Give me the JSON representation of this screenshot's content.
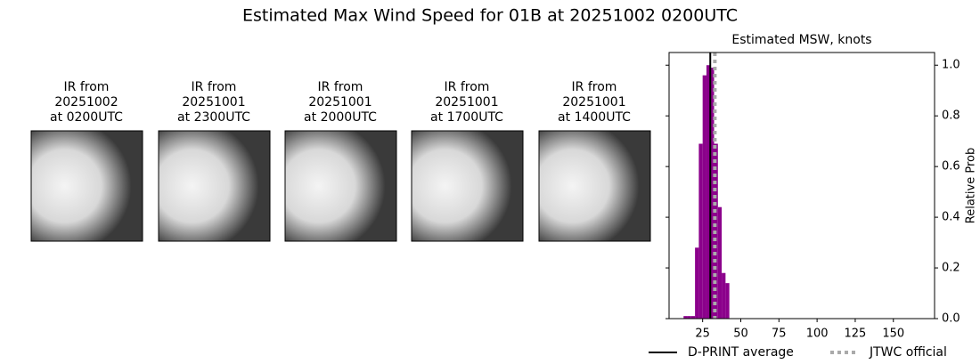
{
  "title": "Estimated Max Wind Speed for 01B at 20251002 0200UTC",
  "panels": [
    {
      "lines": [
        "IR from",
        "20251002",
        "at 0200UTC"
      ]
    },
    {
      "lines": [
        "IR from",
        "20251001",
        "at 2300UTC"
      ]
    },
    {
      "lines": [
        "IR from",
        "20251001",
        "at 2000UTC"
      ]
    },
    {
      "lines": [
        "IR from",
        "20251001",
        "at 1700UTC"
      ]
    },
    {
      "lines": [
        "IR from",
        "20251001",
        "at 1400UTC"
      ]
    }
  ],
  "chart_data": {
    "type": "histogram",
    "title": "Estimated MSW, knots",
    "y_label": "Relative Prob",
    "bins": [
      12.5,
      15,
      17.5,
      20,
      22.5,
      25,
      27.5,
      30,
      32.5,
      35,
      37.5,
      40,
      42.5
    ],
    "values": [
      0.01,
      0.01,
      0.01,
      0.28,
      0.69,
      0.96,
      1.0,
      0.99,
      0.69,
      0.44,
      0.18,
      0.14
    ],
    "color": "#8b008b",
    "lines": [
      {
        "name": "D-PRINT average",
        "value": 30,
        "color": "#000000",
        "style": "solid"
      },
      {
        "name": "JTWC official",
        "value": 33,
        "color": "#aaaaaa",
        "style": "dotted"
      }
    ],
    "xlim": [
      3,
      177
    ],
    "xticks": [
      25,
      50,
      75,
      100,
      125,
      150
    ],
    "ylim": [
      0,
      1.05
    ],
    "yticks": [
      {
        "value": 0,
        "label": "0.0"
      },
      {
        "value": 0.2,
        "label": "0.2"
      },
      {
        "value": 0.4,
        "label": "0.4"
      },
      {
        "value": 0.6,
        "label": "0.6"
      },
      {
        "value": 0.8,
        "label": "0.8"
      },
      {
        "value": 1.0,
        "label": "1.0"
      }
    ]
  }
}
